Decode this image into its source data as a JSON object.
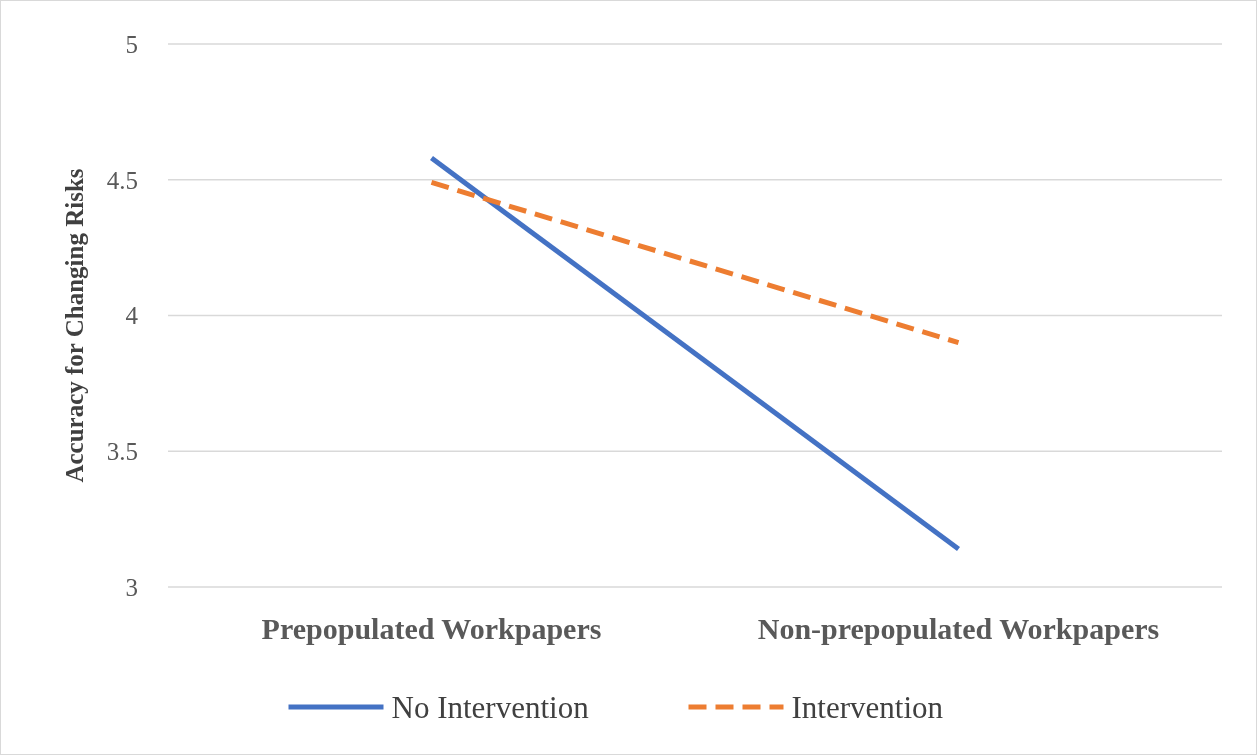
{
  "chart_data": {
    "type": "line",
    "ylabel": "Accuracy for Changing Risks",
    "categories": [
      "Prepopulated Workpapers",
      "Non-prepopulated Workpapers"
    ],
    "series": [
      {
        "name": "No Intervention",
        "color": "#4472c4",
        "values": [
          4.58,
          3.14
        ],
        "line_style": "solid"
      },
      {
        "name": "Intervention",
        "color": "#ed7d31",
        "values": [
          4.49,
          3.9
        ],
        "line_style": "dashed"
      }
    ],
    "ylim": [
      3,
      5
    ],
    "yticks": [
      3,
      3.5,
      4,
      4.5,
      5
    ],
    "grid": "y",
    "legend": "bottom",
    "marker": "none"
  }
}
